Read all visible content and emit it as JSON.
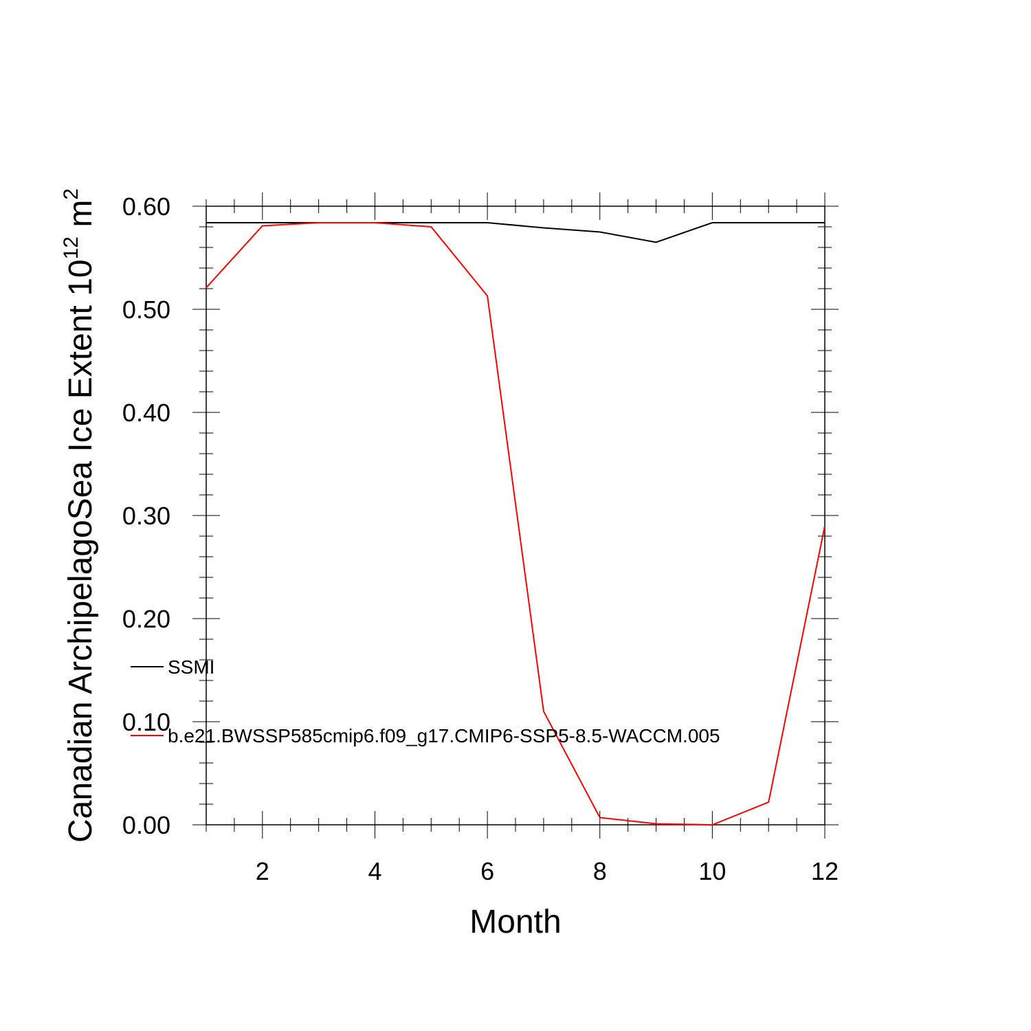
{
  "chart_data": {
    "type": "line",
    "xlabel": "Month",
    "ylabel": "Canadian ArchipelagoSea Ice Extent 10",
    "ylabel_exp": "12",
    "ylabel_unit": " m",
    "ylabel_unit_exp": "2",
    "xlim": [
      1,
      12
    ],
    "ylim": [
      0,
      0.6
    ],
    "x_ticks": [
      2,
      4,
      6,
      8,
      10,
      12
    ],
    "x_tick_labels": [
      "2",
      "4",
      "6",
      "8",
      "10",
      "12"
    ],
    "y_ticks": [
      0,
      0.1,
      0.2,
      0.3,
      0.4,
      0.5,
      0.6
    ],
    "y_tick_labels": [
      "0.00",
      "0.10",
      "0.20",
      "0.30",
      "0.40",
      "0.50",
      "0.60"
    ],
    "x": [
      1,
      2,
      3,
      4,
      5,
      6,
      7,
      8,
      9,
      10,
      11,
      12
    ],
    "series": [
      {
        "name": "SSMI",
        "color": "#000000",
        "values": [
          0.584,
          0.584,
          0.584,
          0.584,
          0.584,
          0.584,
          0.579,
          0.575,
          0.565,
          0.584,
          0.584,
          0.584
        ]
      },
      {
        "name": "b.e21.BWSSP585cmip6.f09_g17.CMIP6-SSP5-8.5-WACCM.005",
        "color": "#ff0000",
        "values": [
          0.521,
          0.581,
          0.584,
          0.584,
          0.58,
          0.513,
          0.11,
          0.007,
          0.001,
          0.0,
          0.022,
          0.29
        ]
      }
    ],
    "legend_position": "left, inside plot"
  }
}
